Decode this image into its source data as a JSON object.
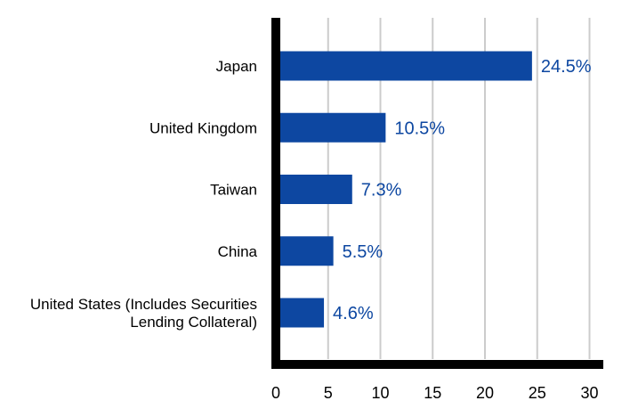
{
  "chart_data": {
    "type": "bar",
    "orientation": "horizontal",
    "categories": [
      [
        "Japan"
      ],
      [
        "United Kingdom"
      ],
      [
        "Taiwan"
      ],
      [
        "China"
      ],
      [
        "United States (Includes Securities",
        "Lending Collateral)"
      ]
    ],
    "values": [
      24.5,
      10.5,
      7.3,
      5.5,
      4.6
    ],
    "data_labels": [
      "24.5%",
      "10.5%",
      "7.3%",
      "5.5%",
      "4.6%"
    ],
    "x_ticks": [
      "0",
      "5",
      "10",
      "15",
      "20",
      "25",
      "30"
    ],
    "xlim": [
      0,
      31.5
    ],
    "title": "",
    "xlabel": "",
    "ylabel": "",
    "grid": "vertical",
    "legend": "none",
    "colors": {
      "bar": "#0D47A1",
      "value_label": "#0D47A1",
      "grid": "#CCCCCC",
      "axis": "#000000"
    }
  }
}
